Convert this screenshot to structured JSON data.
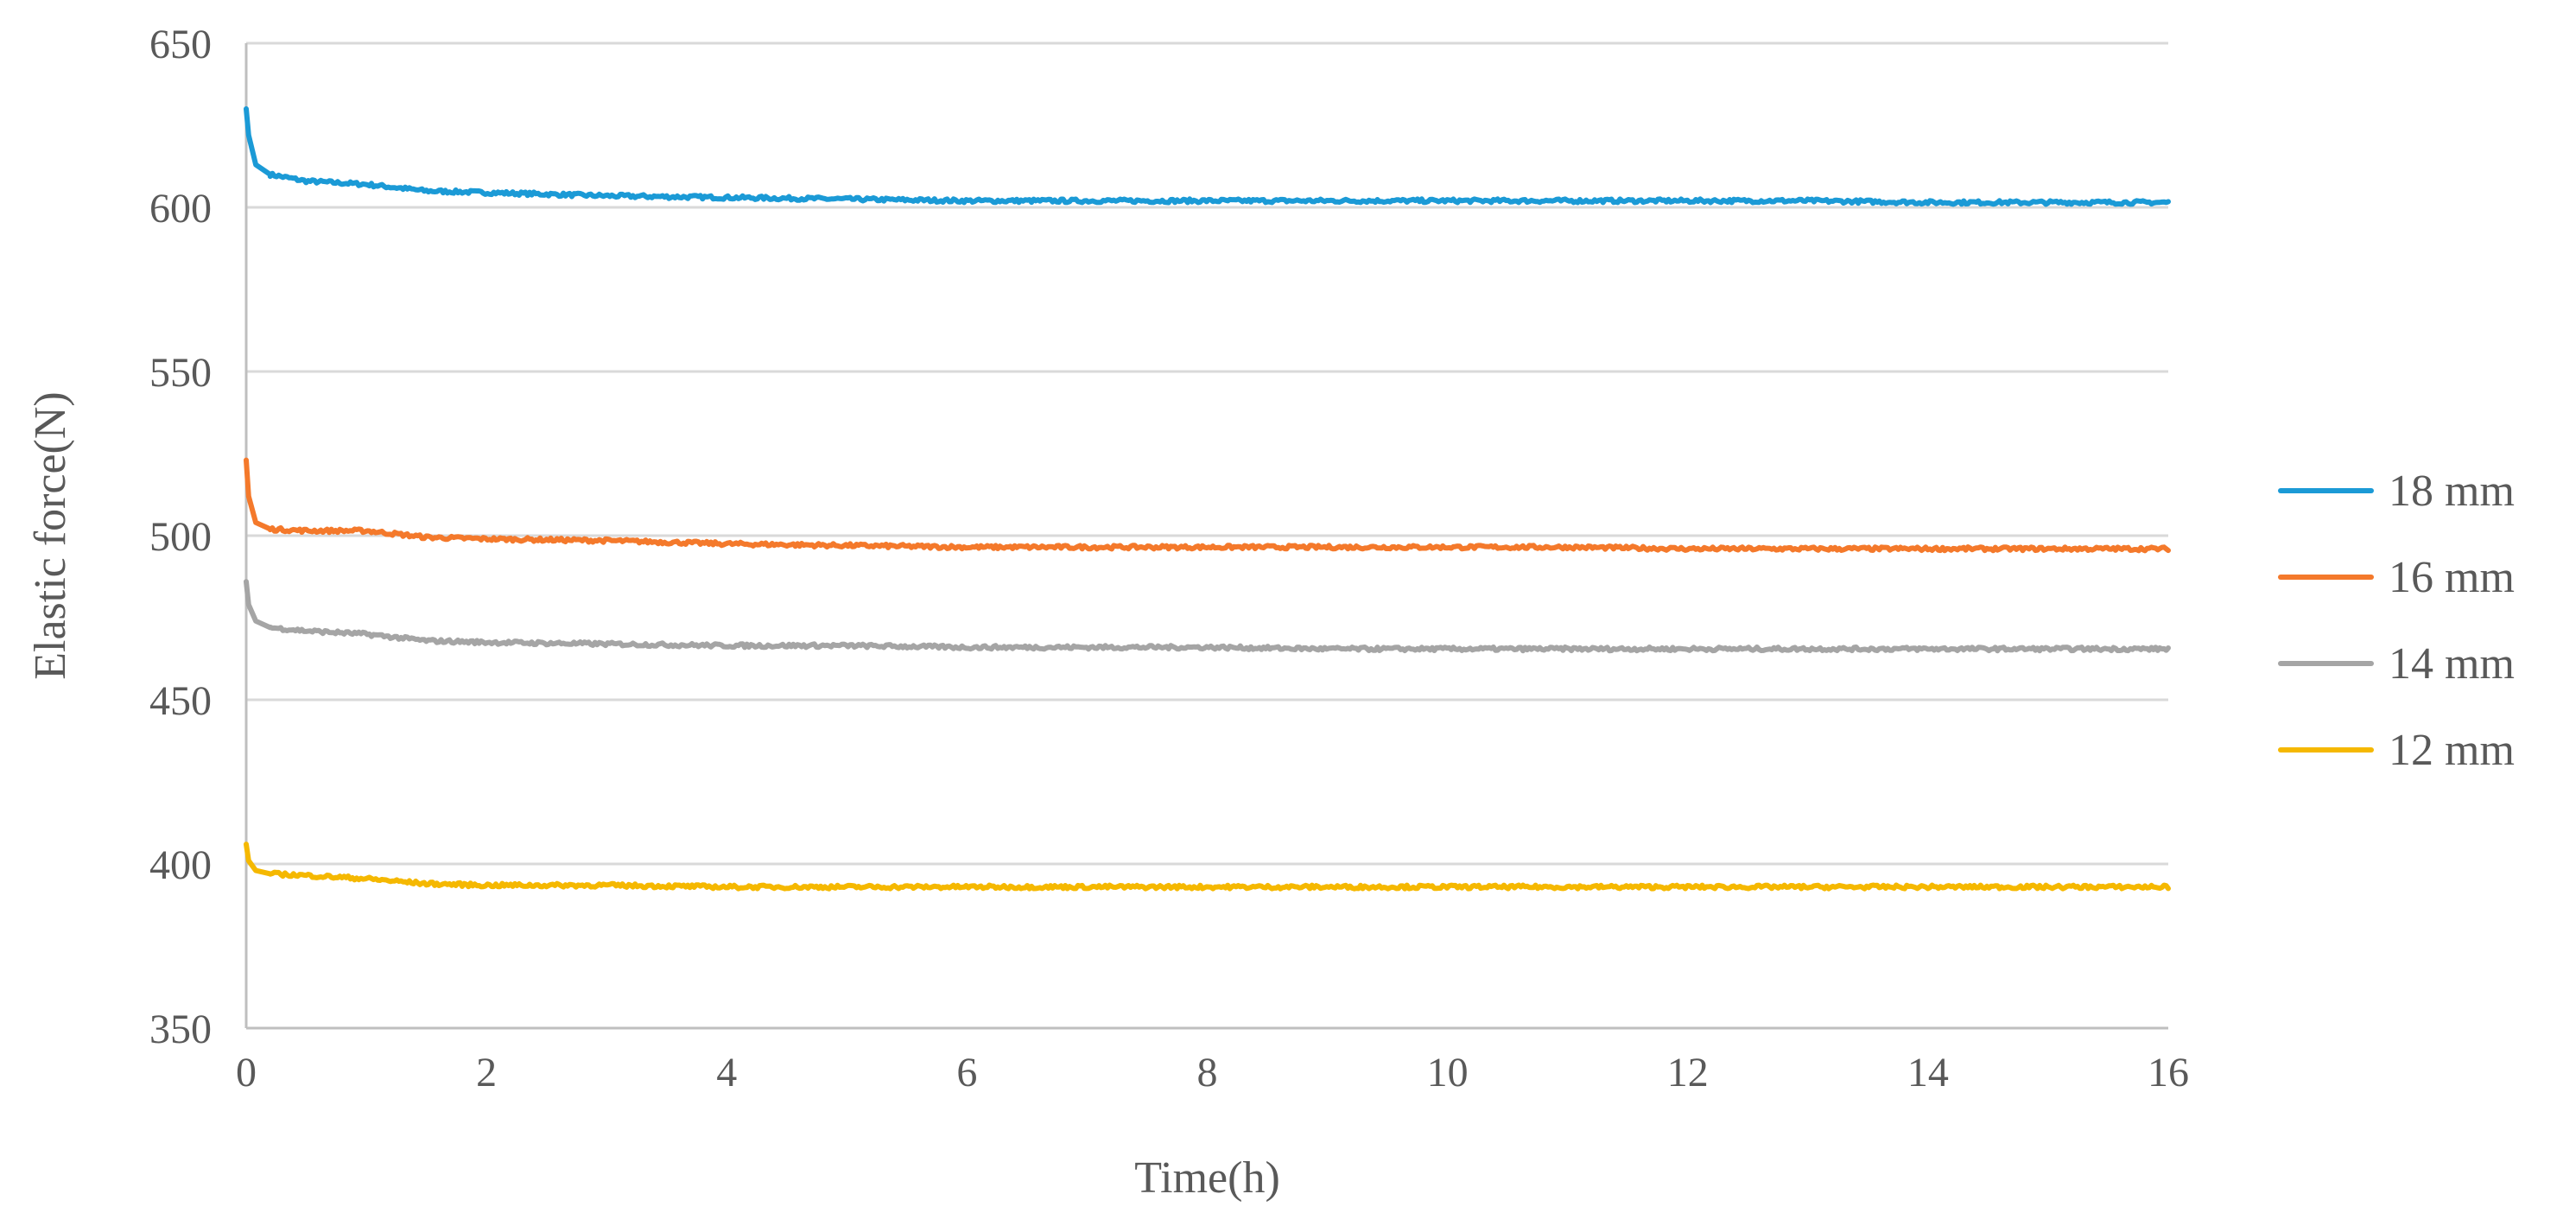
{
  "chart_data": {
    "type": "line",
    "title": "",
    "xlabel": "Time(h)",
    "ylabel": "Elastic force(N)",
    "xlim": [
      0,
      16
    ],
    "ylim": [
      350,
      650
    ],
    "xticks": [
      0,
      2,
      4,
      6,
      8,
      10,
      12,
      14,
      16
    ],
    "yticks": [
      350,
      400,
      450,
      500,
      550,
      600,
      650
    ],
    "grid": true,
    "legend_position": "right",
    "series": [
      {
        "name": "18 mm",
        "color": "#1b9ad6",
        "points": [
          [
            0,
            630
          ],
          [
            0.02,
            622
          ],
          [
            0.08,
            613
          ],
          [
            0.2,
            610
          ],
          [
            0.5,
            608
          ],
          [
            1,
            607
          ],
          [
            1.5,
            605
          ],
          [
            2,
            604.5
          ],
          [
            3,
            603.5
          ],
          [
            4,
            603
          ],
          [
            5,
            602.5
          ],
          [
            6,
            602
          ],
          [
            7,
            602
          ],
          [
            8,
            602
          ],
          [
            9,
            602
          ],
          [
            10,
            602
          ],
          [
            11,
            602
          ],
          [
            12,
            602
          ],
          [
            13,
            602
          ],
          [
            14,
            601.5
          ],
          [
            15,
            601.5
          ],
          [
            16,
            601.5
          ]
        ]
      },
      {
        "name": "16 mm",
        "color": "#f4792b",
        "points": [
          [
            0,
            523
          ],
          [
            0.02,
            512
          ],
          [
            0.08,
            504
          ],
          [
            0.2,
            502
          ],
          [
            0.5,
            501.5
          ],
          [
            1,
            501.5
          ],
          [
            1.5,
            499.5
          ],
          [
            2,
            499
          ],
          [
            3,
            498.5
          ],
          [
            4,
            497.5
          ],
          [
            5,
            497
          ],
          [
            6,
            496.5
          ],
          [
            7,
            496.5
          ],
          [
            8,
            496.5
          ],
          [
            9,
            496.5
          ],
          [
            10,
            496.5
          ],
          [
            11,
            496.5
          ],
          [
            12,
            496
          ],
          [
            13,
            496
          ],
          [
            14,
            496
          ],
          [
            15,
            496
          ],
          [
            16,
            496
          ]
        ]
      },
      {
        "name": "14 mm",
        "color": "#a5a5a5",
        "points": [
          [
            0,
            486
          ],
          [
            0.02,
            479
          ],
          [
            0.08,
            474
          ],
          [
            0.2,
            472
          ],
          [
            0.5,
            471
          ],
          [
            1,
            470
          ],
          [
            1.5,
            468
          ],
          [
            2,
            467.5
          ],
          [
            3,
            467
          ],
          [
            4,
            466.5
          ],
          [
            5,
            466.5
          ],
          [
            6,
            466
          ],
          [
            7,
            466
          ],
          [
            8,
            466
          ],
          [
            9,
            465.5
          ],
          [
            10,
            465.5
          ],
          [
            11,
            465.5
          ],
          [
            12,
            465.5
          ],
          [
            13,
            465.5
          ],
          [
            14,
            465.5
          ],
          [
            15,
            465.5
          ],
          [
            16,
            465.5
          ]
        ]
      },
      {
        "name": "12 mm",
        "color": "#f5b800",
        "points": [
          [
            0,
            406
          ],
          [
            0.02,
            401
          ],
          [
            0.08,
            398
          ],
          [
            0.2,
            397
          ],
          [
            0.5,
            396.5
          ],
          [
            1,
            395.5
          ],
          [
            1.5,
            394
          ],
          [
            2,
            393.5
          ],
          [
            3,
            393.5
          ],
          [
            4,
            393
          ],
          [
            5,
            393
          ],
          [
            6,
            393
          ],
          [
            7,
            393
          ],
          [
            8,
            393
          ],
          [
            9,
            393
          ],
          [
            10,
            393
          ],
          [
            11,
            393
          ],
          [
            12,
            393
          ],
          [
            13,
            393
          ],
          [
            14,
            393
          ],
          [
            15,
            393
          ],
          [
            16,
            393
          ]
        ]
      }
    ]
  }
}
